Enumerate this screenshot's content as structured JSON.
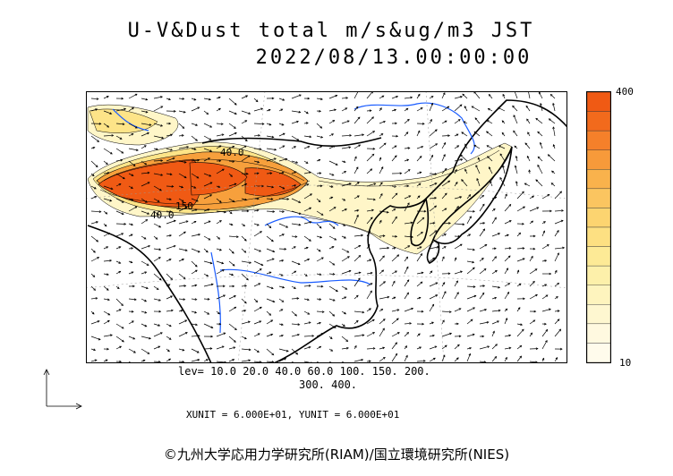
{
  "header": {
    "title": "U-V&Dust total m/s&ug/m3 JST",
    "datetime": "2022/08/13.00:00:00"
  },
  "legend": {
    "max_label": "400",
    "min_label": "10",
    "colors": [
      "#f05a14",
      "#f26a1c",
      "#f5802a",
      "#f79a3a",
      "#f9b24c",
      "#fbc560",
      "#fcd470",
      "#fde082",
      "#fdea96",
      "#fdf0aa",
      "#fef4be",
      "#fef7d0",
      "#fff9e0",
      "#fffbec"
    ]
  },
  "levels": {
    "line1": "lev= 10.0 20.0 40.0 60.0 100. 150. 200.",
    "line2": "300. 400."
  },
  "units": {
    "text": "XUNIT = 6.000E+01, YUNIT = 6.000E+01"
  },
  "map": {
    "contour_labels": [
      "40.0",
      "150",
      "40.0"
    ],
    "coast_color": "#000000",
    "river_color": "#1a5cff",
    "dust_colors": {
      "high": "#f05a14",
      "mid": "#f7a03c",
      "low": "#fde488",
      "faint": "#fff6c8"
    }
  },
  "copyright": "©九州大学応用力学研究所(RIAM)/国立環境研究所(NIES)"
}
